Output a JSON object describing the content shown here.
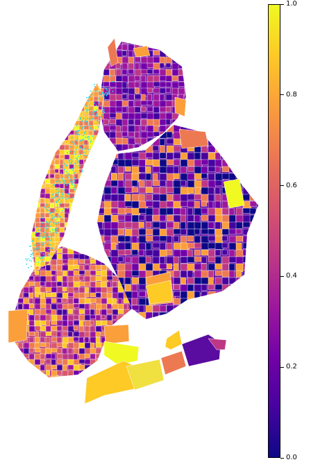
{
  "map": {
    "type": "choropleth",
    "region": "New York City neighborhoods (Manhattan, Bronx, Brooklyn, Queens)",
    "point_overlay_color": "#22ddee",
    "boundary_color": "#ffffff",
    "palette": [
      "#0d0887",
      "#46039f",
      "#7201a8",
      "#9c179e",
      "#bd3786",
      "#d8576b",
      "#ed7953",
      "#fb9f3a",
      "#fdca26",
      "#f0f921"
    ]
  },
  "colorbar": {
    "colormap": "plasma",
    "min": 0.0,
    "max": 1.0,
    "ticks": [
      "0.0",
      "0.2",
      "0.4",
      "0.6",
      "0.8",
      "1.0"
    ]
  }
}
